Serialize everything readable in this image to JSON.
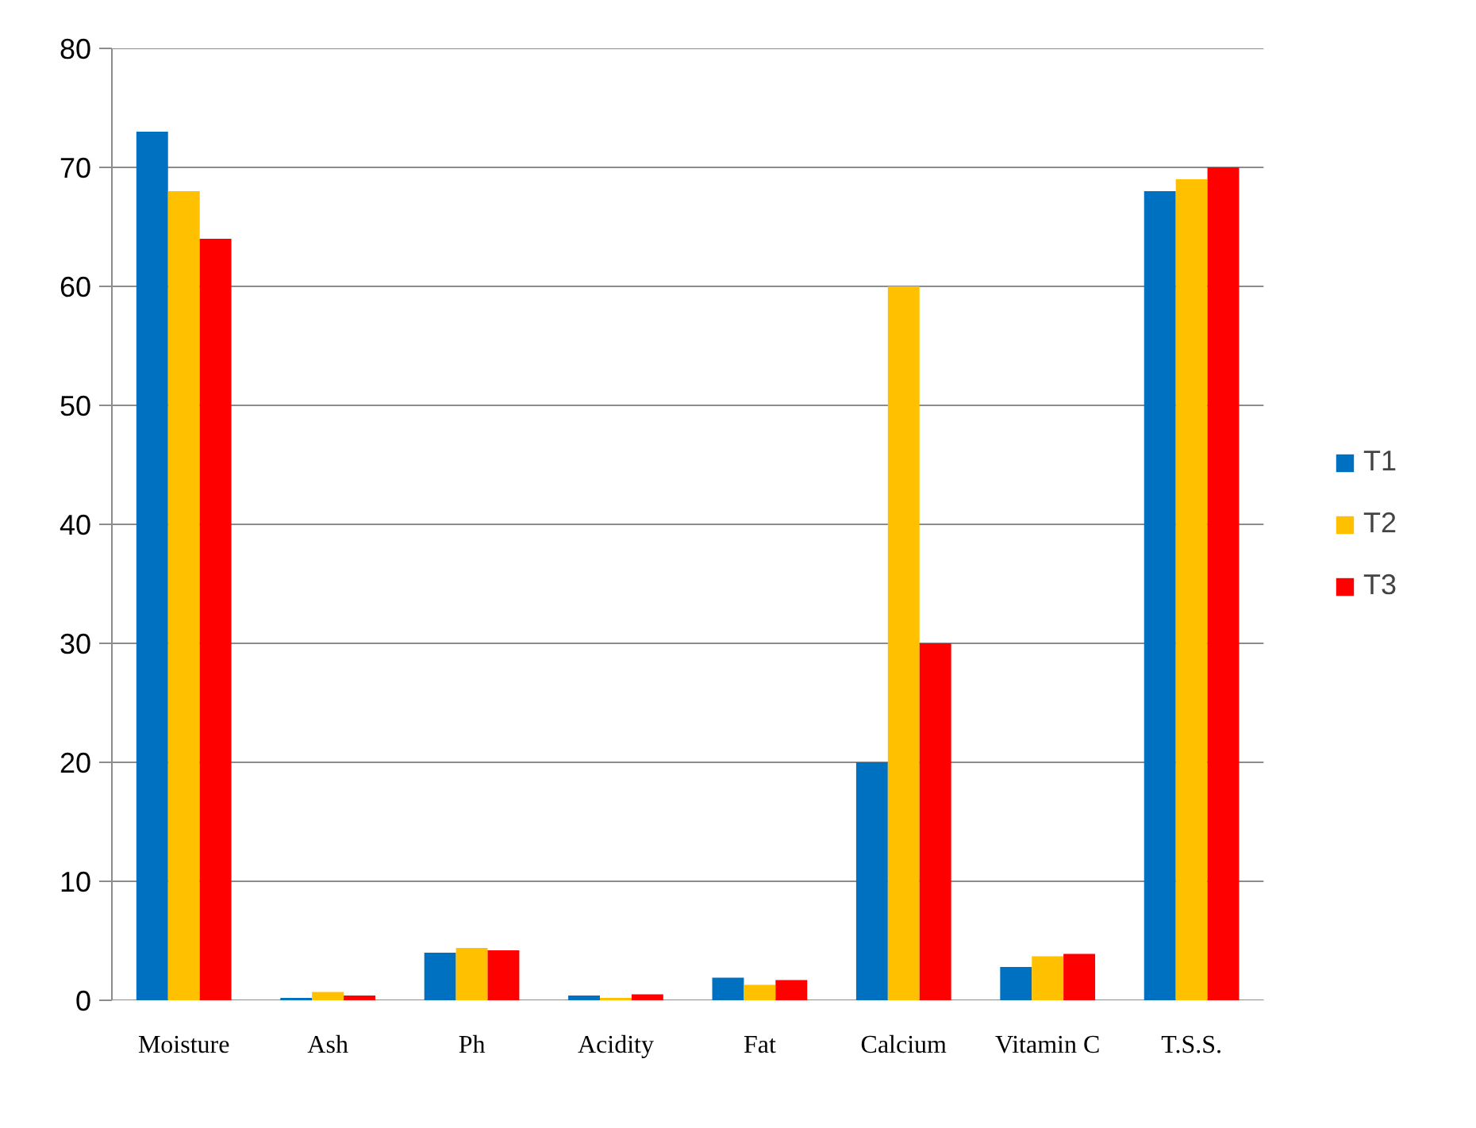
{
  "chart_data": {
    "type": "bar",
    "categories": [
      "Moisture",
      "Ash",
      "Ph",
      "Acidity",
      "Fat",
      "Calcium",
      "Vitamin C",
      "T.S.S."
    ],
    "series": [
      {
        "name": "T1",
        "color": "#0070c0",
        "values": [
          73,
          0.2,
          4.0,
          0.4,
          1.9,
          20,
          2.8,
          68
        ]
      },
      {
        "name": "T2",
        "color": "#ffc000",
        "values": [
          68,
          0.7,
          4.4,
          0.2,
          1.3,
          60,
          3.7,
          69
        ]
      },
      {
        "name": "T3",
        "color": "#ff0000",
        "values": [
          64,
          0.4,
          4.2,
          0.5,
          1.7,
          30,
          3.9,
          70
        ]
      }
    ],
    "ylim": [
      0,
      80
    ],
    "yticks": [
      0,
      10,
      20,
      30,
      40,
      50,
      60,
      70,
      80
    ],
    "grid": "y",
    "legend": "right"
  }
}
